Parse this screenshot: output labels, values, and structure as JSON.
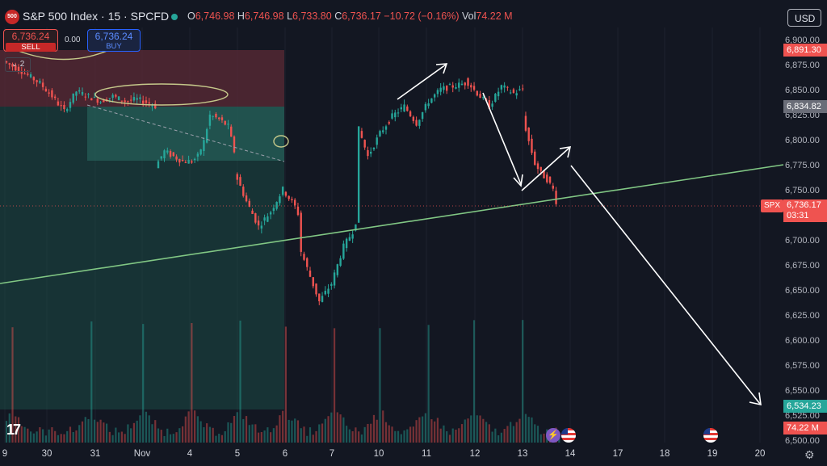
{
  "header": {
    "logo_text": "500",
    "title": "S&P 500 Index · 15 · SPCFD",
    "open_label": "O",
    "open": "6,746.98",
    "high_label": "H",
    "high": "6,746.98",
    "low_label": "L",
    "low": "6,733.80",
    "close_label": "C",
    "close": "6,736.17",
    "change": "−10.72 (−0.16%)",
    "vol_label": "Vol",
    "vol": "74.22 M",
    "currency": "USD"
  },
  "trade": {
    "sell_price": "6,736.24",
    "sell_label": "SELL",
    "spread": "0.00",
    "buy_price": "6,736.24",
    "buy_label": "BUY",
    "indicator_count": "2"
  },
  "price_axis": {
    "labels": [
      "6,900.00",
      "6,875.00",
      "6,850.00",
      "6,825.00",
      "6,800.00",
      "6,775.00",
      "6,750.00",
      "6,725.00",
      "6,700.00",
      "6,675.00",
      "6,650.00",
      "6,625.00",
      "6,600.00",
      "6,575.00",
      "6,550.00",
      "6,525.00",
      "6,500.00"
    ],
    "tag_high": "6,891.30",
    "tag_mid": "6,834.82",
    "tag_current": "6,736.17",
    "tag_countdown": "03:31",
    "tag_low": "6,534.23",
    "tag_volume": "74.22 M",
    "symbol_tag": "SPX"
  },
  "date_axis": {
    "labels": [
      "9",
      "30",
      "31",
      "Nov",
      "4",
      "5",
      "6",
      "7",
      "10",
      "11",
      "12",
      "13",
      "14",
      "17",
      "18",
      "19",
      "20"
    ]
  },
  "colors": {
    "up": "#26a69a",
    "down": "#ef5350",
    "background": "#131722",
    "trendline": "#81c784",
    "arrows": "#ffffff"
  },
  "icons": [
    "tradingview-logo-icon",
    "lightning-icon",
    "us-flag-icon",
    "gear-icon"
  ],
  "chart_data": {
    "type": "candlestick",
    "title": "S&P 500 Index · 15 · SPCFD",
    "x_dates": [
      "9",
      "30",
      "31",
      "Nov",
      "4",
      "5",
      "6",
      "7",
      "10",
      "11",
      "12",
      "13",
      "14",
      "17",
      "18",
      "19",
      "20"
    ],
    "ylim": [
      6500,
      6910
    ],
    "path": [
      [
        0,
        6880
      ],
      [
        6,
        6870
      ],
      [
        12,
        6858
      ],
      [
        16,
        6845
      ],
      [
        20,
        6830
      ],
      [
        24,
        6850
      ],
      [
        28,
        6845
      ],
      [
        32,
        6840
      ],
      [
        36,
        6845
      ],
      [
        40,
        6840
      ],
      [
        44,
        6842
      ],
      [
        48,
        6838
      ],
      [
        50,
        6835
      ],
      [
        50,
        6775
      ],
      [
        53,
        6790
      ],
      [
        56,
        6785
      ],
      [
        59,
        6780
      ],
      [
        62,
        6780
      ],
      [
        64,
        6785
      ],
      [
        66,
        6800
      ],
      [
        68,
        6826
      ],
      [
        71,
        6822
      ],
      [
        74,
        6815
      ],
      [
        76,
        6790
      ],
      [
        76,
        6770
      ],
      [
        80,
        6740
      ],
      [
        84,
        6715
      ],
      [
        88,
        6730
      ],
      [
        92,
        6752
      ],
      [
        96,
        6735
      ],
      [
        97,
        6728
      ],
      [
        98,
        6690
      ],
      [
        101,
        6665
      ],
      [
        104,
        6640
      ],
      [
        108,
        6658
      ],
      [
        112,
        6695
      ],
      [
        115,
        6710
      ],
      [
        116,
        6720
      ],
      [
        117,
        6812
      ],
      [
        120,
        6785
      ],
      [
        124,
        6808
      ],
      [
        128,
        6825
      ],
      [
        132,
        6835
      ],
      [
        136,
        6818
      ],
      [
        140,
        6840
      ],
      [
        144,
        6852
      ],
      [
        148,
        6855
      ],
      [
        152,
        6858
      ],
      [
        152,
        6862
      ],
      [
        156,
        6848
      ],
      [
        160,
        6835
      ],
      [
        164,
        6855
      ],
      [
        168,
        6848
      ],
      [
        171,
        6852
      ],
      [
        171,
        6825
      ],
      [
        173,
        6800
      ],
      [
        175,
        6778
      ],
      [
        177,
        6768
      ],
      [
        179,
        6762
      ],
      [
        181,
        6752
      ],
      [
        182,
        6740
      ]
    ],
    "volume_hint": "periodic spikes at each session open"
  }
}
